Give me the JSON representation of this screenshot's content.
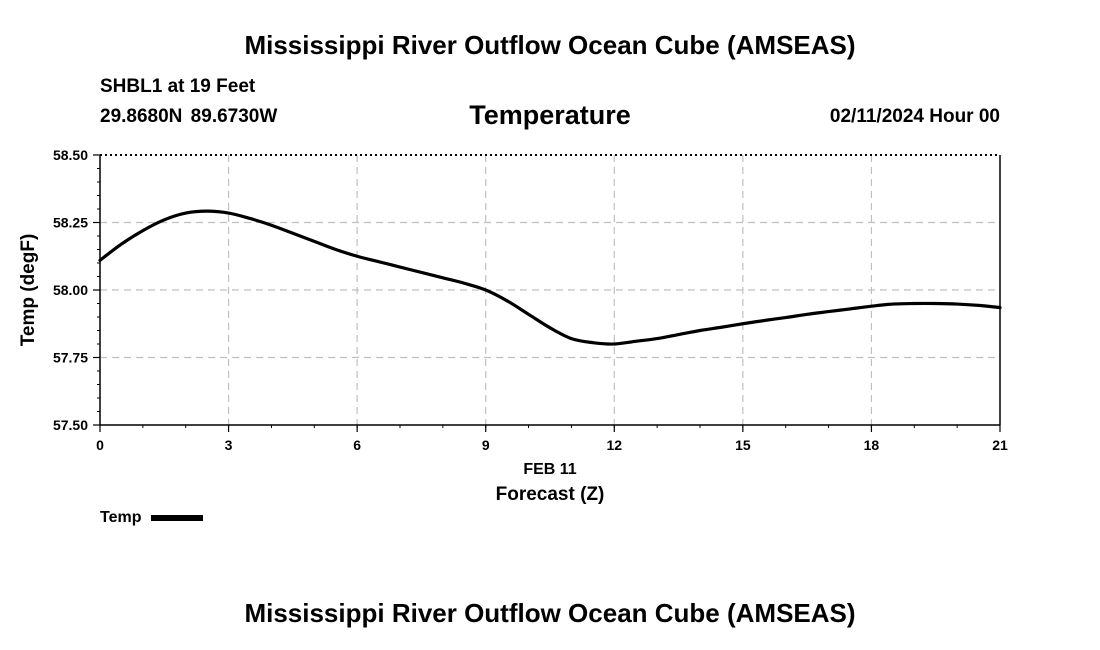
{
  "header": {
    "title": "Mississippi River Outflow Ocean Cube (AMSEAS)",
    "station": "SHBL1 at 19 Feet",
    "coords": "29.8680N  89.6730W",
    "variable": "Temperature",
    "run_time": "02/11/2024 Hour 00"
  },
  "footer": {
    "title": "Mississippi River Outflow Ocean Cube (AMSEAS)"
  },
  "legend": {
    "label": "Temp"
  },
  "colors": {
    "line": "#000000",
    "grid": "#c0c0c0"
  },
  "chart_data": {
    "type": "line",
    "title": "Temperature",
    "xlabel": "Forecast (Z)",
    "ylabel": "Temp (degF)",
    "date_label": "FEB 11",
    "xlim": [
      0,
      21
    ],
    "ylim": [
      57.5,
      58.5
    ],
    "x_ticks": [
      0,
      3,
      6,
      9,
      12,
      15,
      18,
      21
    ],
    "y_ticks": [
      57.5,
      57.75,
      58.0,
      58.25,
      58.5
    ],
    "y_tick_labels": [
      "57.50",
      "57.75",
      "58.00",
      "58.25",
      "58.50"
    ],
    "grid": true,
    "series": [
      {
        "name": "Temp",
        "x": [
          0,
          0.5,
          1,
          1.5,
          2,
          2.5,
          3,
          3.5,
          4,
          4.5,
          5,
          5.5,
          6,
          6.5,
          7,
          7.5,
          8,
          8.5,
          9,
          9.5,
          10,
          10.5,
          11,
          11.5,
          12,
          12.5,
          13,
          13.5,
          14,
          14.5,
          15,
          15.5,
          16,
          16.5,
          17,
          17.5,
          18,
          18.5,
          19,
          19.5,
          20,
          20.5,
          21
        ],
        "values": [
          58.11,
          58.17,
          58.22,
          58.26,
          58.285,
          58.292,
          58.285,
          58.265,
          58.24,
          58.21,
          58.18,
          58.15,
          58.125,
          58.105,
          58.085,
          58.065,
          58.045,
          58.025,
          58.0,
          57.96,
          57.91,
          57.86,
          57.82,
          57.805,
          57.8,
          57.81,
          57.82,
          57.835,
          57.85,
          57.862,
          57.875,
          57.887,
          57.898,
          57.91,
          57.92,
          57.93,
          57.94,
          57.948,
          57.95,
          57.95,
          57.948,
          57.943,
          57.935
        ]
      }
    ]
  }
}
